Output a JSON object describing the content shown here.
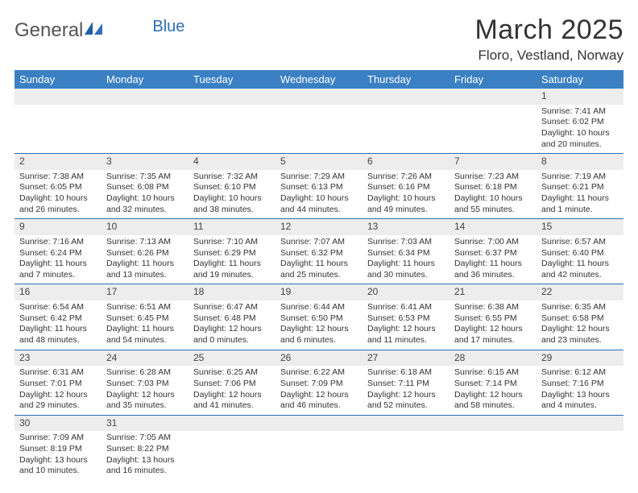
{
  "logo": {
    "part1": "General",
    "part2": "Blue"
  },
  "title": "March 2025",
  "location": "Floro, Vestland, Norway",
  "dayHeaders": [
    "Sunday",
    "Monday",
    "Tuesday",
    "Wednesday",
    "Thursday",
    "Friday",
    "Saturday"
  ],
  "colors": {
    "headerBg": "#3a80c3",
    "headerFg": "#ffffff",
    "dayStripe": "#ededed",
    "rule": "#2b6fb5",
    "text": "#333333",
    "logoBlue": "#2b6fb5"
  },
  "weeks": [
    [
      null,
      null,
      null,
      null,
      null,
      null,
      {
        "n": "1",
        "sr": "Sunrise: 7:41 AM",
        "ss": "Sunset: 6:02 PM",
        "dl": "Daylight: 10 hours and 20 minutes."
      }
    ],
    [
      {
        "n": "2",
        "sr": "Sunrise: 7:38 AM",
        "ss": "Sunset: 6:05 PM",
        "dl": "Daylight: 10 hours and 26 minutes."
      },
      {
        "n": "3",
        "sr": "Sunrise: 7:35 AM",
        "ss": "Sunset: 6:08 PM",
        "dl": "Daylight: 10 hours and 32 minutes."
      },
      {
        "n": "4",
        "sr": "Sunrise: 7:32 AM",
        "ss": "Sunset: 6:10 PM",
        "dl": "Daylight: 10 hours and 38 minutes."
      },
      {
        "n": "5",
        "sr": "Sunrise: 7:29 AM",
        "ss": "Sunset: 6:13 PM",
        "dl": "Daylight: 10 hours and 44 minutes."
      },
      {
        "n": "6",
        "sr": "Sunrise: 7:26 AM",
        "ss": "Sunset: 6:16 PM",
        "dl": "Daylight: 10 hours and 49 minutes."
      },
      {
        "n": "7",
        "sr": "Sunrise: 7:23 AM",
        "ss": "Sunset: 6:18 PM",
        "dl": "Daylight: 10 hours and 55 minutes."
      },
      {
        "n": "8",
        "sr": "Sunrise: 7:19 AM",
        "ss": "Sunset: 6:21 PM",
        "dl": "Daylight: 11 hours and 1 minute."
      }
    ],
    [
      {
        "n": "9",
        "sr": "Sunrise: 7:16 AM",
        "ss": "Sunset: 6:24 PM",
        "dl": "Daylight: 11 hours and 7 minutes."
      },
      {
        "n": "10",
        "sr": "Sunrise: 7:13 AM",
        "ss": "Sunset: 6:26 PM",
        "dl": "Daylight: 11 hours and 13 minutes."
      },
      {
        "n": "11",
        "sr": "Sunrise: 7:10 AM",
        "ss": "Sunset: 6:29 PM",
        "dl": "Daylight: 11 hours and 19 minutes."
      },
      {
        "n": "12",
        "sr": "Sunrise: 7:07 AM",
        "ss": "Sunset: 6:32 PM",
        "dl": "Daylight: 11 hours and 25 minutes."
      },
      {
        "n": "13",
        "sr": "Sunrise: 7:03 AM",
        "ss": "Sunset: 6:34 PM",
        "dl": "Daylight: 11 hours and 30 minutes."
      },
      {
        "n": "14",
        "sr": "Sunrise: 7:00 AM",
        "ss": "Sunset: 6:37 PM",
        "dl": "Daylight: 11 hours and 36 minutes."
      },
      {
        "n": "15",
        "sr": "Sunrise: 6:57 AM",
        "ss": "Sunset: 6:40 PM",
        "dl": "Daylight: 11 hours and 42 minutes."
      }
    ],
    [
      {
        "n": "16",
        "sr": "Sunrise: 6:54 AM",
        "ss": "Sunset: 6:42 PM",
        "dl": "Daylight: 11 hours and 48 minutes."
      },
      {
        "n": "17",
        "sr": "Sunrise: 6:51 AM",
        "ss": "Sunset: 6:45 PM",
        "dl": "Daylight: 11 hours and 54 minutes."
      },
      {
        "n": "18",
        "sr": "Sunrise: 6:47 AM",
        "ss": "Sunset: 6:48 PM",
        "dl": "Daylight: 12 hours and 0 minutes."
      },
      {
        "n": "19",
        "sr": "Sunrise: 6:44 AM",
        "ss": "Sunset: 6:50 PM",
        "dl": "Daylight: 12 hours and 6 minutes."
      },
      {
        "n": "20",
        "sr": "Sunrise: 6:41 AM",
        "ss": "Sunset: 6:53 PM",
        "dl": "Daylight: 12 hours and 11 minutes."
      },
      {
        "n": "21",
        "sr": "Sunrise: 6:38 AM",
        "ss": "Sunset: 6:55 PM",
        "dl": "Daylight: 12 hours and 17 minutes."
      },
      {
        "n": "22",
        "sr": "Sunrise: 6:35 AM",
        "ss": "Sunset: 6:58 PM",
        "dl": "Daylight: 12 hours and 23 minutes."
      }
    ],
    [
      {
        "n": "23",
        "sr": "Sunrise: 6:31 AM",
        "ss": "Sunset: 7:01 PM",
        "dl": "Daylight: 12 hours and 29 minutes."
      },
      {
        "n": "24",
        "sr": "Sunrise: 6:28 AM",
        "ss": "Sunset: 7:03 PM",
        "dl": "Daylight: 12 hours and 35 minutes."
      },
      {
        "n": "25",
        "sr": "Sunrise: 6:25 AM",
        "ss": "Sunset: 7:06 PM",
        "dl": "Daylight: 12 hours and 41 minutes."
      },
      {
        "n": "26",
        "sr": "Sunrise: 6:22 AM",
        "ss": "Sunset: 7:09 PM",
        "dl": "Daylight: 12 hours and 46 minutes."
      },
      {
        "n": "27",
        "sr": "Sunrise: 6:18 AM",
        "ss": "Sunset: 7:11 PM",
        "dl": "Daylight: 12 hours and 52 minutes."
      },
      {
        "n": "28",
        "sr": "Sunrise: 6:15 AM",
        "ss": "Sunset: 7:14 PM",
        "dl": "Daylight: 12 hours and 58 minutes."
      },
      {
        "n": "29",
        "sr": "Sunrise: 6:12 AM",
        "ss": "Sunset: 7:16 PM",
        "dl": "Daylight: 13 hours and 4 minutes."
      }
    ],
    [
      {
        "n": "30",
        "sr": "Sunrise: 7:09 AM",
        "ss": "Sunset: 8:19 PM",
        "dl": "Daylight: 13 hours and 10 minutes."
      },
      {
        "n": "31",
        "sr": "Sunrise: 7:05 AM",
        "ss": "Sunset: 8:22 PM",
        "dl": "Daylight: 13 hours and 16 minutes."
      },
      null,
      null,
      null,
      null,
      null
    ]
  ]
}
